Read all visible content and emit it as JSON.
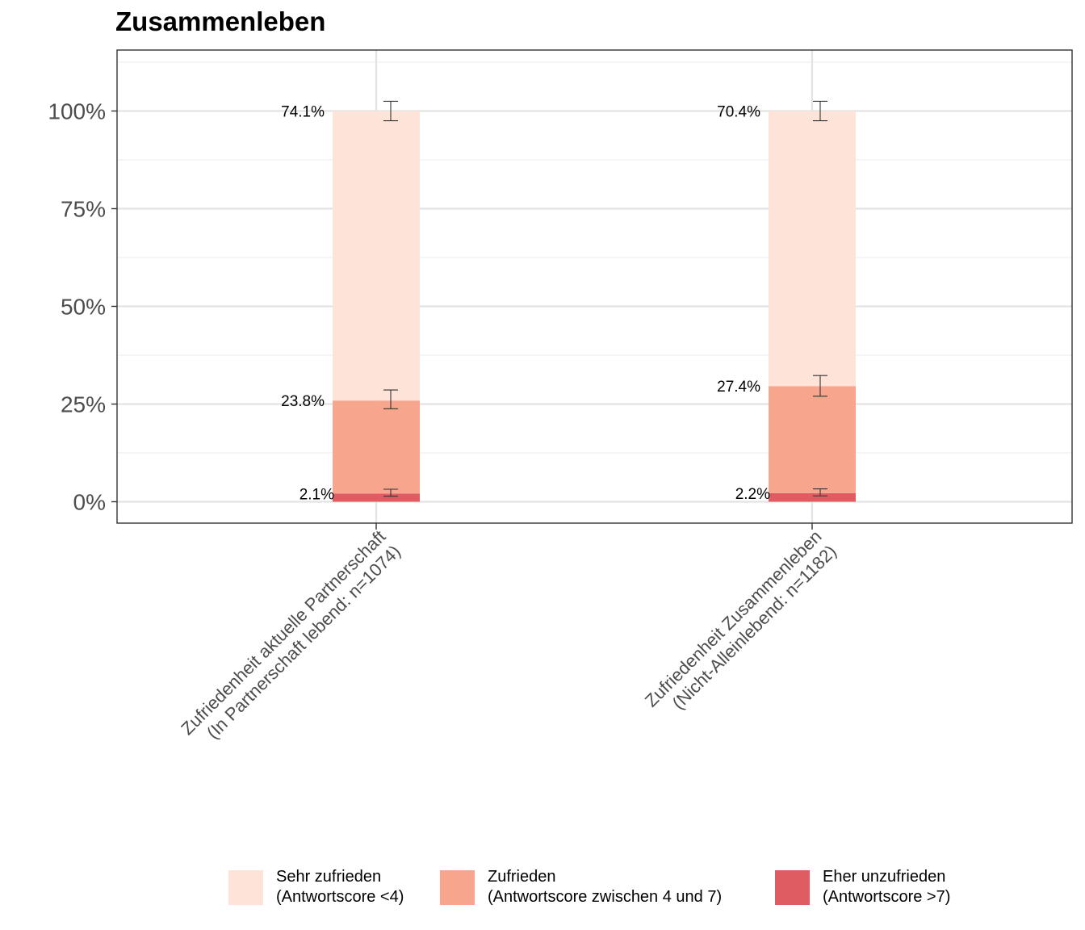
{
  "chart_data": {
    "type": "bar",
    "title": "Zusammenleben",
    "categories": [
      [
        "Zufriedenheit aktuelle Partnerschaft",
        "(In Partnerschaft lebend: n=1074)"
      ],
      [
        "Zufriedenheit Zusammenleben",
        "(Nicht-Alleinlebend: n=1182)"
      ]
    ],
    "series": [
      {
        "name": "Eher unzufrieden",
        "name_sub": "(Antwortscore >7)",
        "color": "#e05c63",
        "values": [
          2.1,
          2.2
        ],
        "labels": [
          "2.1%",
          "2.2%"
        ],
        "error": [
          [
            1.4,
            3.2
          ],
          [
            1.5,
            3.3
          ]
        ]
      },
      {
        "name": "Zufrieden",
        "name_sub": "(Antwortscore zwischen 4 und 7)",
        "color": "#f8a58d",
        "values": [
          23.8,
          27.4
        ],
        "labels": [
          "23.8%",
          "27.4%"
        ],
        "error": [
          [
            23.8,
            28.6
          ],
          [
            27.0,
            32.3
          ]
        ]
      },
      {
        "name": "Sehr zufrieden",
        "name_sub": "(Antwortscore <4)",
        "color": "#fee3d8",
        "values": [
          74.1,
          70.4
        ],
        "labels": [
          "74.1%",
          "70.4%"
        ],
        "error": [
          [
            97.5,
            102.5
          ],
          [
            97.5,
            102.5
          ]
        ]
      }
    ],
    "y_ticks": [
      "0%",
      "25%",
      "50%",
      "75%",
      "100%"
    ],
    "y_tick_values": [
      0,
      25,
      50,
      75,
      100
    ],
    "ylim": [
      -5.5,
      115.5
    ],
    "stacked": true,
    "grid": true,
    "legend_position": "bottom",
    "legend_order": [
      "Sehr zufrieden",
      "Zufrieden",
      "Eher unzufrieden"
    ]
  }
}
